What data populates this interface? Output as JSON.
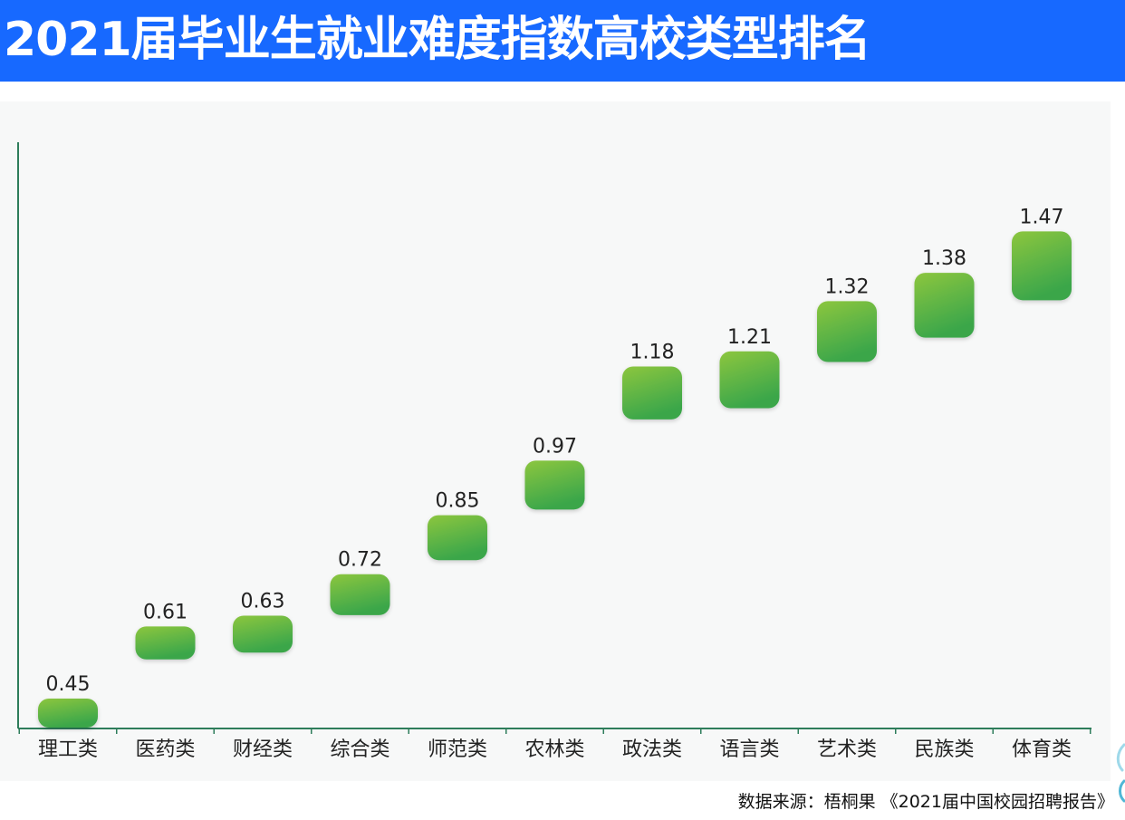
{
  "header": {
    "title": "2021届毕业生就业难度指数高校类型排名"
  },
  "footer": {
    "source": "数据来源：梧桐果 《2021届中国校园招聘报告》"
  },
  "colors": {
    "title_bg": "#1769ff",
    "bar_top": "#8cc63f",
    "bar_bottom": "#3aa64a",
    "axis": "#2e7d5b"
  },
  "chart_data": {
    "type": "bar",
    "style": "floating rounded tiles at value height",
    "categories": [
      "理工类",
      "医药类",
      "财经类",
      "综合类",
      "师范类",
      "农林类",
      "政法类",
      "语言类",
      "艺术类",
      "民族类",
      "体育类"
    ],
    "values": [
      0.45,
      0.61,
      0.63,
      0.72,
      0.85,
      0.97,
      1.18,
      1.21,
      1.32,
      1.38,
      1.47
    ],
    "value_labels": [
      "0.45",
      "0.61",
      "0.63",
      "0.72",
      "0.85",
      "0.97",
      "1.18",
      "1.21",
      "1.32",
      "1.38",
      "1.47"
    ],
    "title": "",
    "xlabel": "",
    "ylabel": "",
    "ylim": [
      0.4,
      1.6
    ],
    "grid": false,
    "legend": "none"
  }
}
